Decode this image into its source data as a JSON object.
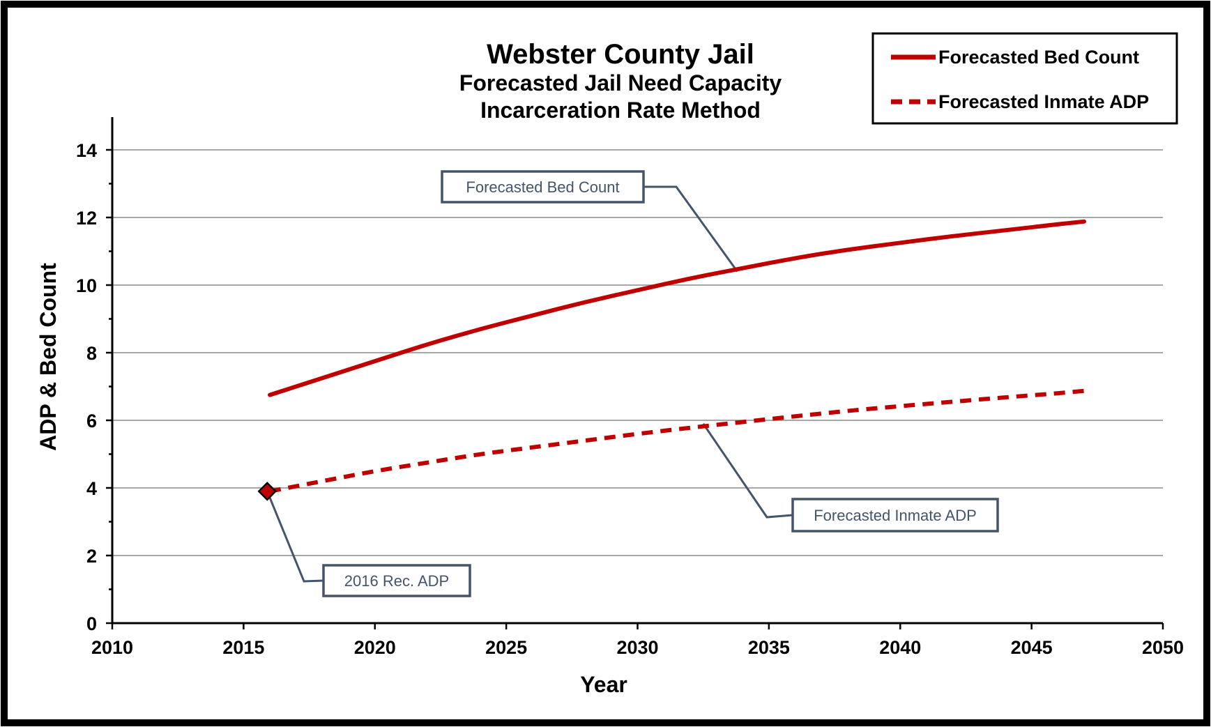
{
  "chart_data": {
    "type": "line",
    "title": "Webster County Jail",
    "subtitle_lines": [
      "Forecasted Jail Need Capacity",
      "Incarceration Rate Method"
    ],
    "xlabel": "Year",
    "ylabel": "ADP & Bed Count",
    "xlim": [
      2010,
      2050
    ],
    "ylim": [
      0,
      14
    ],
    "xticks": [
      2010,
      2015,
      2020,
      2025,
      2030,
      2035,
      2040,
      2045,
      2050
    ],
    "yticks": [
      0,
      2,
      4,
      6,
      8,
      10,
      12,
      14
    ],
    "grid": "horizontal",
    "legend_position": "top-right",
    "series": [
      {
        "name": "Forecasted Bed Count",
        "style": "solid",
        "color": "#c00000",
        "x": [
          2016,
          2018,
          2020,
          2022,
          2024,
          2026,
          2028,
          2030,
          2032,
          2034,
          2036,
          2038,
          2040,
          2042,
          2044,
          2046,
          2047
        ],
        "y": [
          6.75,
          7.25,
          7.75,
          8.25,
          8.7,
          9.1,
          9.5,
          9.85,
          10.2,
          10.5,
          10.8,
          11.05,
          11.25,
          11.45,
          11.62,
          11.8,
          11.88
        ]
      },
      {
        "name": "Forecasted Inmate ADP",
        "style": "dashed",
        "color": "#c00000",
        "x": [
          2016,
          2018,
          2020,
          2022,
          2024,
          2026,
          2028,
          2030,
          2032,
          2034,
          2036,
          2038,
          2040,
          2042,
          2044,
          2046,
          2047
        ],
        "y": [
          3.9,
          4.2,
          4.5,
          4.75,
          5.0,
          5.2,
          5.4,
          5.6,
          5.78,
          5.95,
          6.12,
          6.28,
          6.42,
          6.55,
          6.68,
          6.8,
          6.87
        ]
      }
    ],
    "marker": {
      "x": 2015.9,
      "y": 3.9,
      "color": "#c00000",
      "shape": "diamond"
    },
    "callouts": [
      {
        "text": "Forecasted Bed Count",
        "anchor_x": 2033.8,
        "anchor_y": 10.4
      },
      {
        "text": "Forecasted Inmate ADP",
        "anchor_x": 2032.5,
        "anchor_y": 5.9
      },
      {
        "text": "2016 Rec. ADP",
        "anchor_x": 2015.9,
        "anchor_y": 3.9
      }
    ],
    "legend": [
      {
        "label": "Forecasted Bed Count",
        "style": "solid"
      },
      {
        "label": "Forecasted Inmate ADP",
        "style": "dashed"
      }
    ]
  }
}
